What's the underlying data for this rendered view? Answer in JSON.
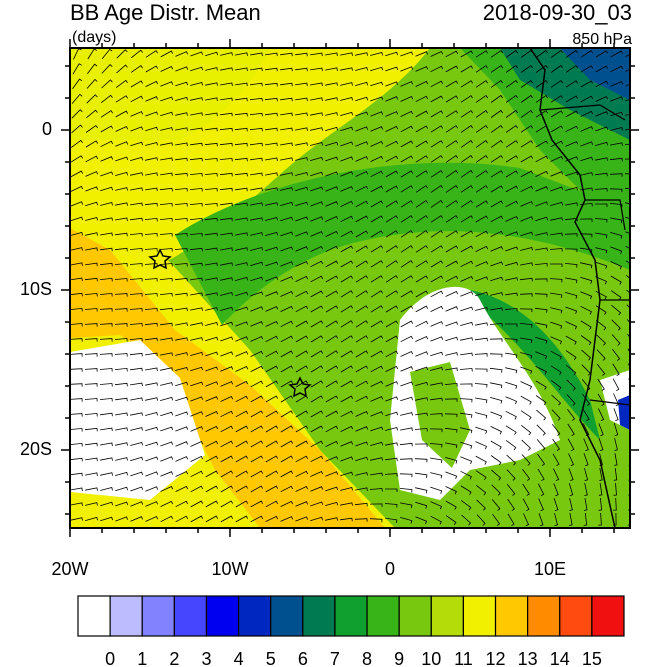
{
  "header": {
    "title": "BB Age Distr. Mean",
    "units": "(days)",
    "time": "2018-09-30_03",
    "level": "850 hPa"
  },
  "map": {
    "x_labels": [
      "20W",
      "10W",
      "0",
      "10E"
    ],
    "y_labels": [
      "0",
      "10S",
      "20S"
    ]
  },
  "colorbar": {
    "levels": [
      0,
      1,
      2,
      3,
      4,
      5,
      6,
      7,
      8,
      9,
      10,
      11,
      12,
      13,
      14,
      15
    ],
    "colors": [
      "#ffffff",
      "#bcbcff",
      "#8282ff",
      "#4646ff",
      "#0000f0",
      "#0028c0",
      "#005090",
      "#007a50",
      "#10a030",
      "#38b418",
      "#78c810",
      "#b4dc08",
      "#f0f000",
      "#ffc800",
      "#ff8c00",
      "#ff4a10",
      "#f01010"
    ]
  }
}
